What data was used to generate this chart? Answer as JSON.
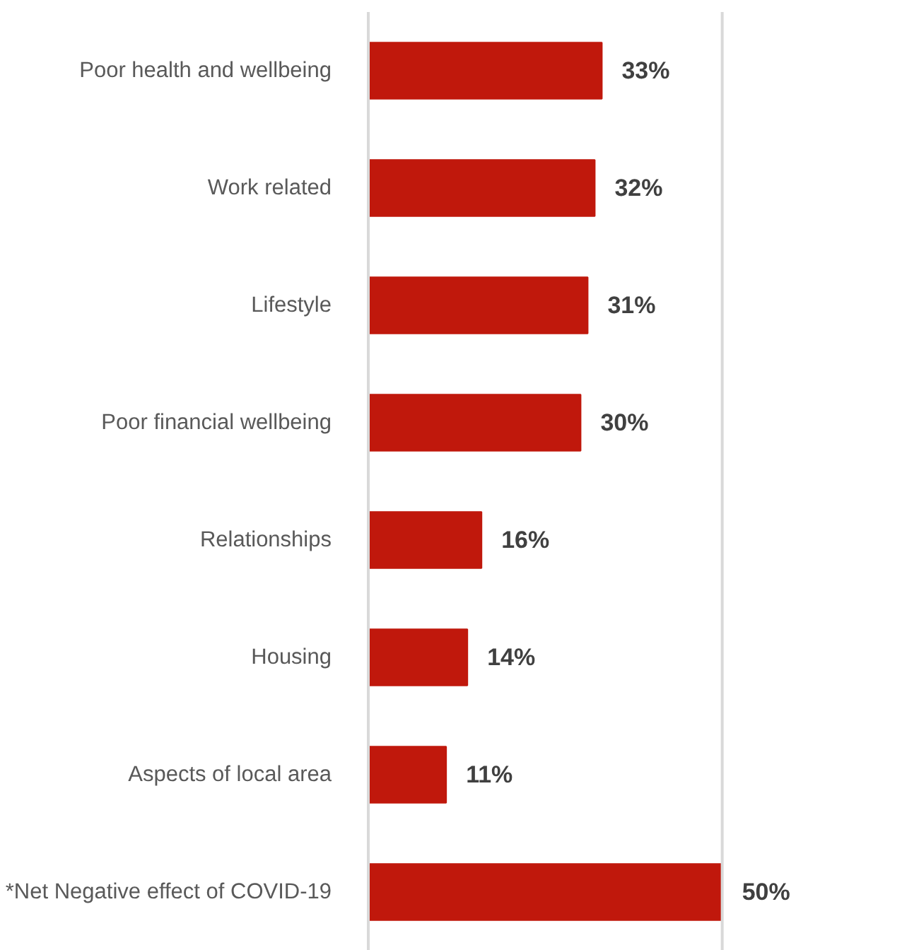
{
  "chart_data": {
    "type": "bar",
    "orientation": "horizontal",
    "categories": [
      "Poor health and wellbeing",
      "Work related",
      "Lifestyle",
      "Poor financial wellbeing",
      "Relationships",
      "Housing",
      "Aspects of local area",
      "*Net Negative effect of COVID-19"
    ],
    "values": [
      33,
      32,
      31,
      30,
      16,
      14,
      11,
      50
    ],
    "value_labels": [
      "33%",
      "32%",
      "31%",
      "30%",
      "16%",
      "14%",
      "11%",
      "50%"
    ],
    "color": "#c0180c",
    "ref_lines": [
      {
        "axis": "x",
        "value": 50,
        "color": "#d9d9d9"
      }
    ],
    "tick_labels": "y"
  }
}
